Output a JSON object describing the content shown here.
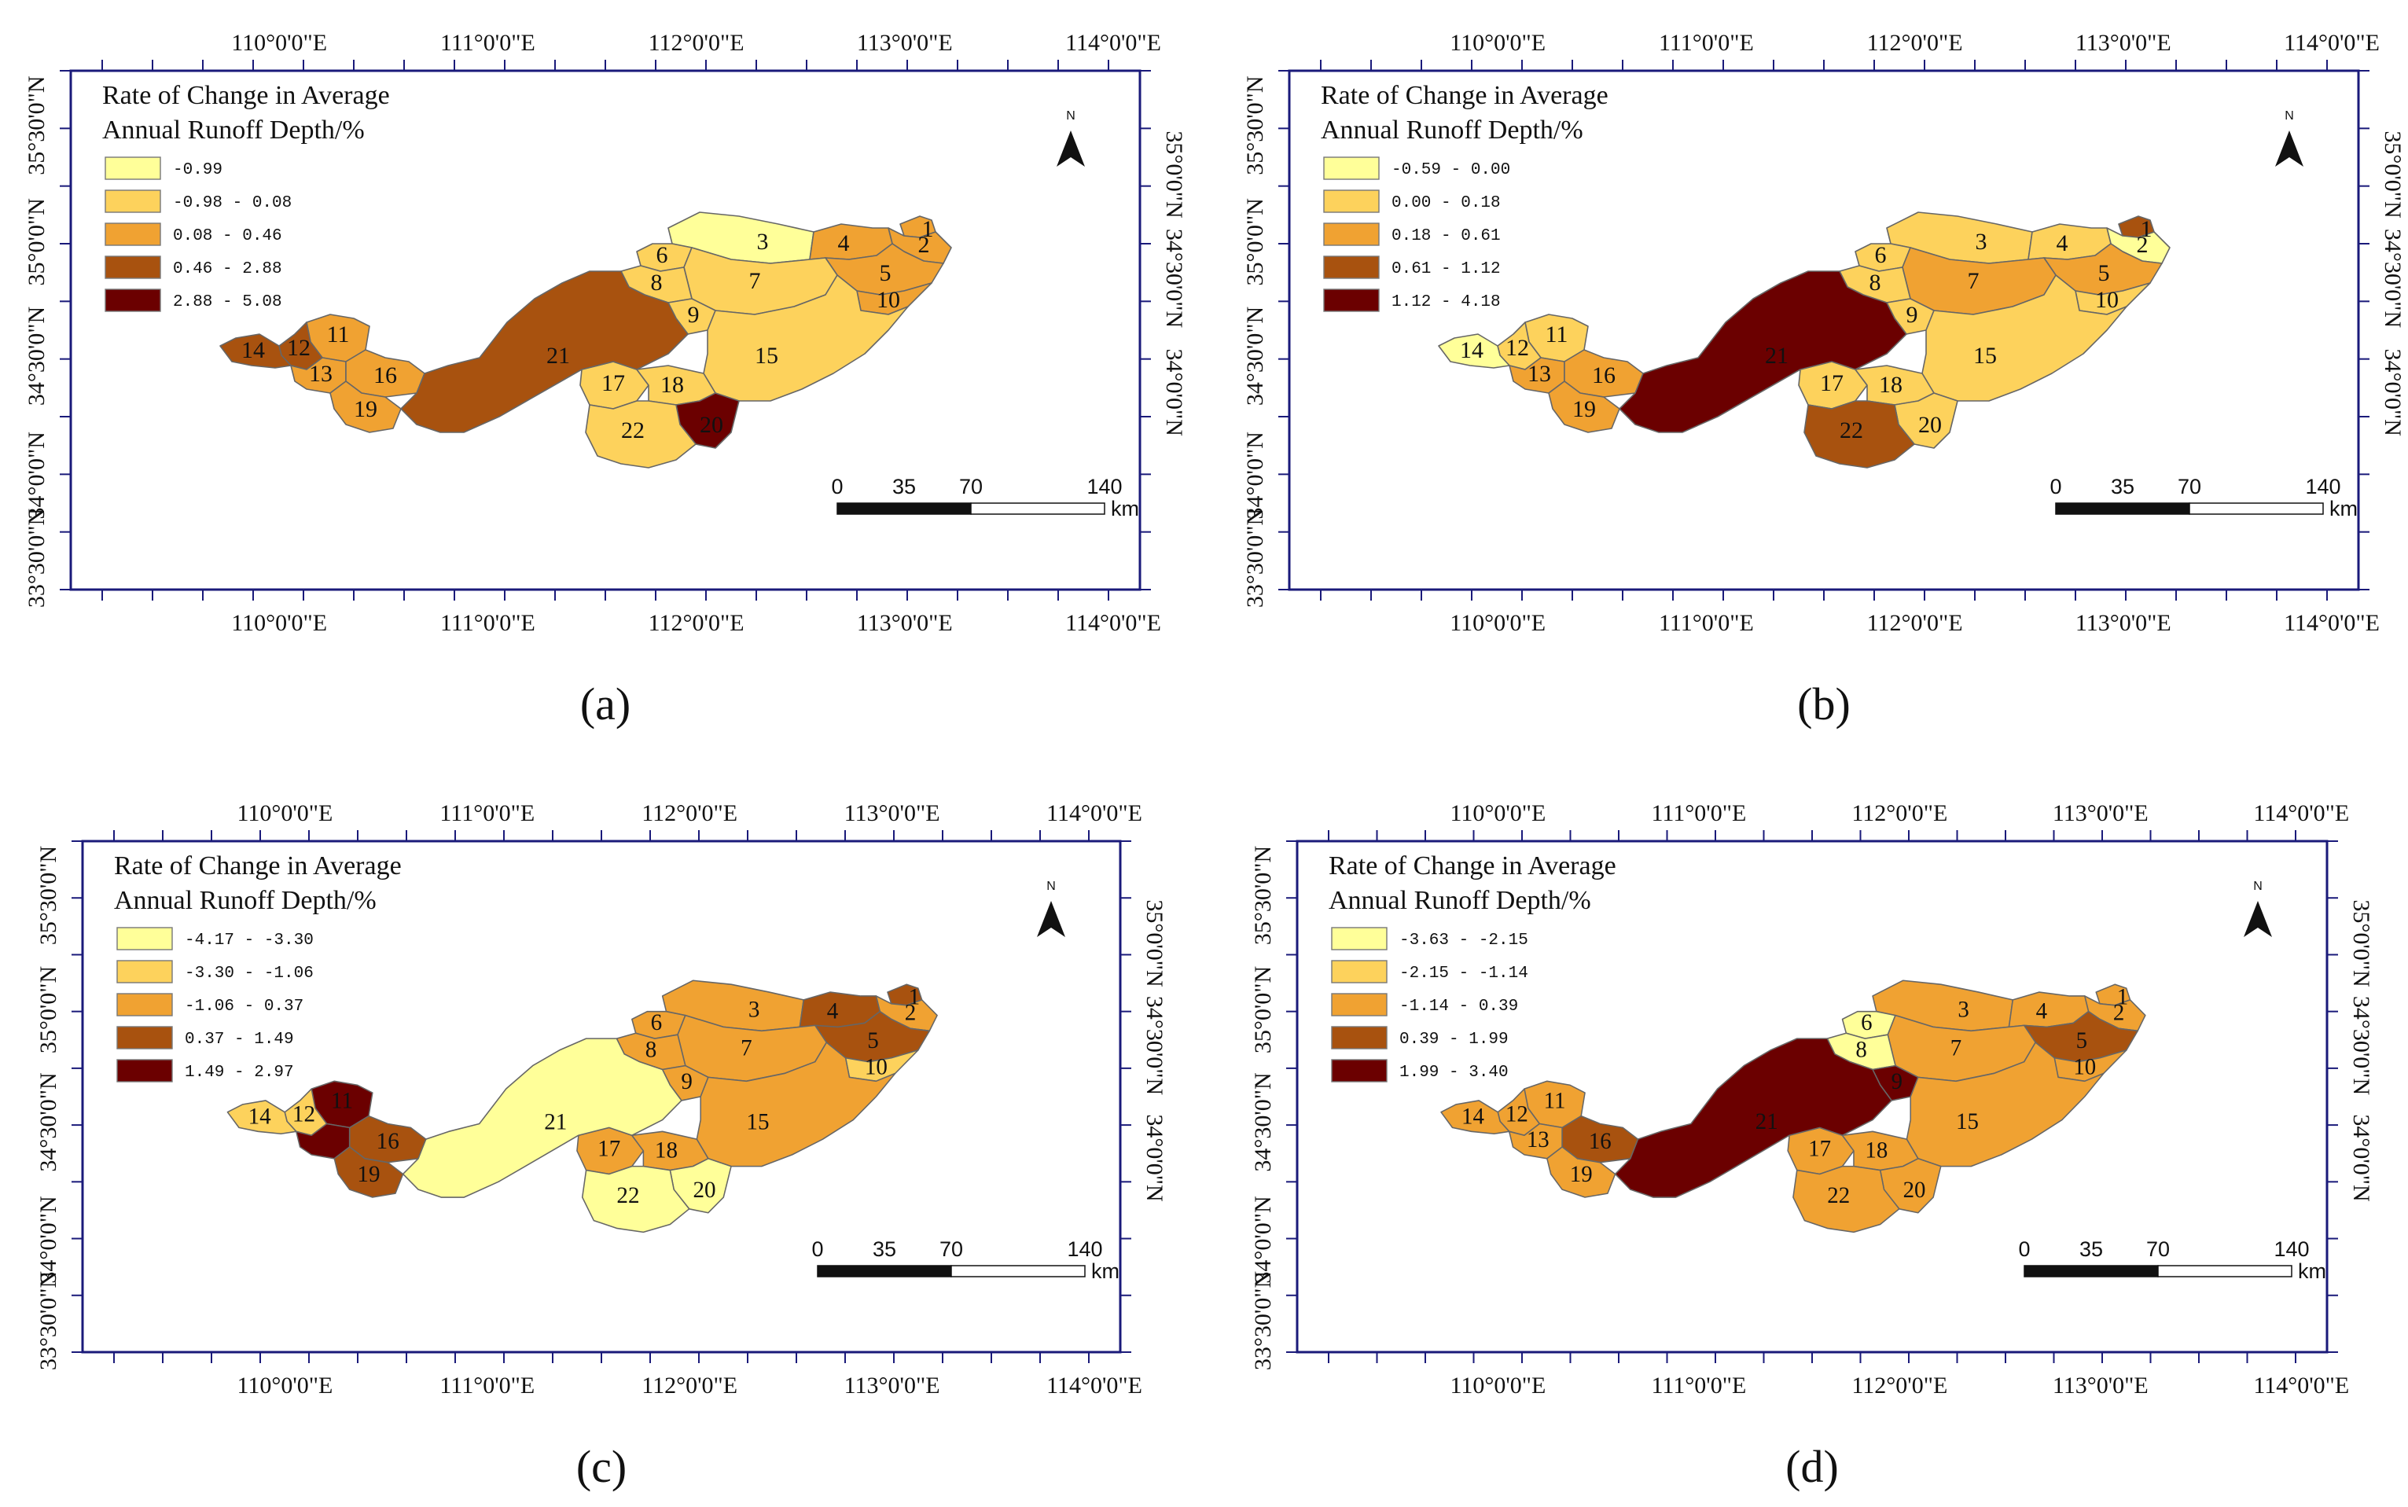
{
  "figure": {
    "lon_ticks": [
      "110°0'0\"E",
      "111°0'0\"E",
      "112°0'0\"E",
      "113°0'0\"E",
      "114°0'0\"E"
    ],
    "lat_ticks_left": [
      "35°30'0\"N",
      "35°0'0\"N",
      "34°30'0\"N",
      "34°0'0\"N",
      "33°30'0\"N"
    ],
    "lat_ticks_right": [
      "35°0'0\"N",
      "34°30'0\"N",
      "34°0'0\"N"
    ],
    "legend_title_line1": "Rate of Change in Average",
    "legend_title_line2": "Annual Runoff Depth/%",
    "north_label": "N",
    "scale_labels": [
      "0",
      "35",
      "70",
      "140"
    ],
    "scale_unit": "km",
    "class_colors": [
      "#ffff99",
      "#fdd25c",
      "#f0a232",
      "#a8520f",
      "#6b0000"
    ]
  },
  "panels": [
    {
      "label": "(a)",
      "classes": [
        "-0.99",
        "-0.98 - 0.08",
        "0.08 - 0.46",
        "0.46 - 2.88",
        "2.88 - 5.08"
      ],
      "basin_class": {
        "1": 2,
        "2": 2,
        "3": 0,
        "4": 2,
        "5": 2,
        "6": 1,
        "7": 1,
        "8": 1,
        "9": 1,
        "10": 2,
        "11": 2,
        "12": 3,
        "13": 2,
        "14": 3,
        "15": 1,
        "16": 2,
        "17": 1,
        "18": 1,
        "19": 2,
        "20": 4,
        "21": 3,
        "22": 1
      },
      "hidden_labels": []
    },
    {
      "label": "(b)",
      "classes": [
        "-0.59 - 0.00",
        "0.00 - 0.18",
        "0.18 - 0.61",
        "0.61 - 1.12",
        "1.12 - 4.18"
      ],
      "basin_class": {
        "1": 3,
        "2": 0,
        "3": 1,
        "4": 1,
        "5": 2,
        "6": 1,
        "7": 2,
        "8": 1,
        "9": 1,
        "10": 1,
        "11": 1,
        "12": 1,
        "13": 2,
        "14": 0,
        "15": 1,
        "16": 2,
        "17": 1,
        "18": 1,
        "19": 2,
        "20": 1,
        "21": 4,
        "22": 3
      },
      "hidden_labels": []
    },
    {
      "label": "(c)",
      "classes": [
        "-4.17 - -3.30",
        "-3.30 - -1.06",
        "-1.06 - 0.37",
        "0.37 - 1.49",
        "1.49 - 2.97"
      ],
      "basin_class": {
        "1": 3,
        "2": 2,
        "3": 2,
        "4": 3,
        "5": 3,
        "6": 2,
        "7": 2,
        "8": 2,
        "9": 2,
        "10": 1,
        "11": 4,
        "12": 1,
        "13": 4,
        "14": 1,
        "15": 2,
        "16": 3,
        "17": 2,
        "18": 2,
        "19": 3,
        "20": 0,
        "21": 0,
        "22": 0
      },
      "hidden_labels": [
        "13"
      ]
    },
    {
      "label": "(d)",
      "classes": [
        "-3.63 - -2.15",
        "-2.15 - -1.14",
        "-1.14 - 0.39",
        "0.39 - 1.99",
        "1.99 - 3.40"
      ],
      "basin_class": {
        "1": 2,
        "2": 2,
        "3": 2,
        "4": 2,
        "5": 3,
        "6": 0,
        "7": 2,
        "8": 0,
        "9": 4,
        "10": 2,
        "11": 2,
        "12": 2,
        "13": 2,
        "14": 2,
        "15": 2,
        "16": 3,
        "17": 2,
        "18": 2,
        "19": 2,
        "20": 2,
        "21": 4,
        "22": 2
      },
      "hidden_labels": []
    }
  ]
}
